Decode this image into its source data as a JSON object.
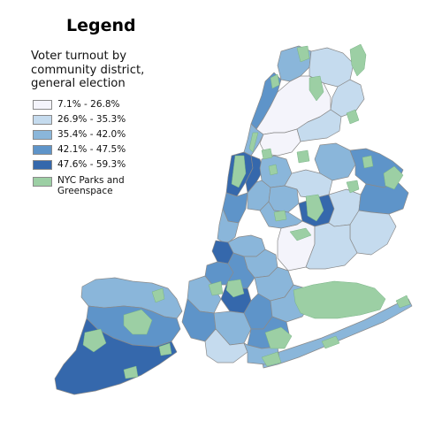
{
  "legend": {
    "title": "Legend",
    "subtitle_lines": [
      "Voter turnout by",
      "community district,",
      "general election"
    ],
    "classes": [
      {
        "label": "7.1% - 26.8%",
        "color": "#f4f4fb"
      },
      {
        "label": "26.9% - 35.3%",
        "color": "#c5dbee"
      },
      {
        "label": "35.4% - 42.0%",
        "color": "#8ab6da"
      },
      {
        "label": "42.1% - 47.5%",
        "color": "#5e94c9"
      },
      {
        "label": "47.6% - 59.3%",
        "color": "#3568ac"
      }
    ],
    "parks": {
      "label_lines": [
        "NYC Parks and",
        "Greenspace"
      ],
      "color": "#9ccfa4"
    }
  },
  "colors": {
    "border": "#8a8a8a",
    "park_border": "#79b386",
    "background": "#ffffff"
  }
}
